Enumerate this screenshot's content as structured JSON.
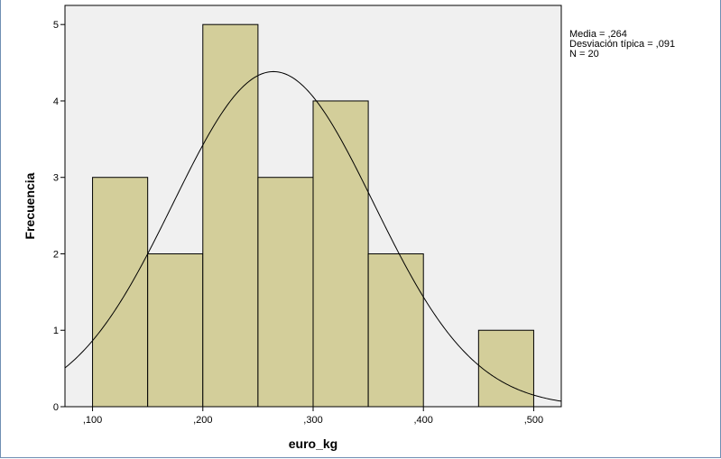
{
  "chart_data": {
    "type": "bar",
    "subtype": "histogram",
    "xlabel": "euro_kg",
    "ylabel": "Frecuencia",
    "xlim": [
      0.075,
      0.525
    ],
    "ylim": [
      0,
      5.25
    ],
    "x_ticks": [
      {
        "value": 0.1,
        "label": ",100"
      },
      {
        "value": 0.2,
        "label": ",200"
      },
      {
        "value": 0.3,
        "label": ",300"
      },
      {
        "value": 0.4,
        "label": ",400"
      },
      {
        "value": 0.5,
        "label": ",500"
      }
    ],
    "y_ticks": [
      {
        "value": 0,
        "label": "0"
      },
      {
        "value": 1,
        "label": "1"
      },
      {
        "value": 2,
        "label": "2"
      },
      {
        "value": 3,
        "label": "3"
      },
      {
        "value": 4,
        "label": "4"
      },
      {
        "value": 5,
        "label": "5"
      }
    ],
    "bins": [
      {
        "x0": 0.1,
        "x1": 0.15,
        "count": 3
      },
      {
        "x0": 0.15,
        "x1": 0.2,
        "count": 2
      },
      {
        "x0": 0.2,
        "x1": 0.25,
        "count": 5
      },
      {
        "x0": 0.25,
        "x1": 0.3,
        "count": 3
      },
      {
        "x0": 0.3,
        "x1": 0.35,
        "count": 4
      },
      {
        "x0": 0.35,
        "x1": 0.4,
        "count": 2
      },
      {
        "x0": 0.4,
        "x1": 0.45,
        "count": 0
      },
      {
        "x0": 0.45,
        "x1": 0.5,
        "count": 1
      }
    ],
    "normal_curve": {
      "mean": 0.264,
      "sd": 0.091,
      "n": 20,
      "bin_width": 0.05
    },
    "stats_lines": [
      "Media = ,264",
      "Desviación típica = ,091",
      "N = 20"
    ],
    "colors": {
      "plot_background": "#f0f0f0",
      "bar_fill": "#d3ce9a",
      "bar_stroke": "#000000",
      "curve": "#000000",
      "frame": "#6f8fb3"
    },
    "grid": false
  }
}
